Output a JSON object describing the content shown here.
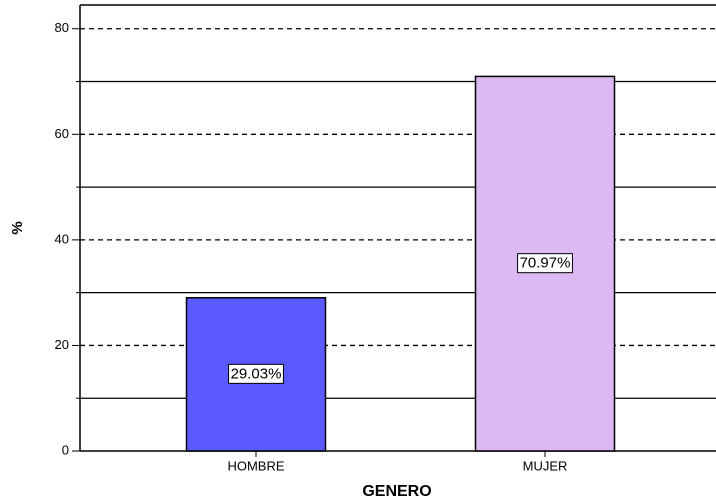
{
  "chart_data": {
    "type": "bar",
    "x_label": "GENERO",
    "y_label": "%",
    "categories": [
      "HOMBRE",
      "MUJER"
    ],
    "values": [
      29.03,
      70.97
    ],
    "value_labels": [
      "29.03%",
      "70.97%"
    ],
    "colors": [
      "#5a5aff",
      "#dcb9f3"
    ],
    "ylim": [
      0,
      84.5
    ],
    "yticks": [
      0,
      20,
      40,
      60,
      80
    ],
    "yminor_ticks": [
      10,
      30,
      50,
      70
    ],
    "grid": true
  }
}
